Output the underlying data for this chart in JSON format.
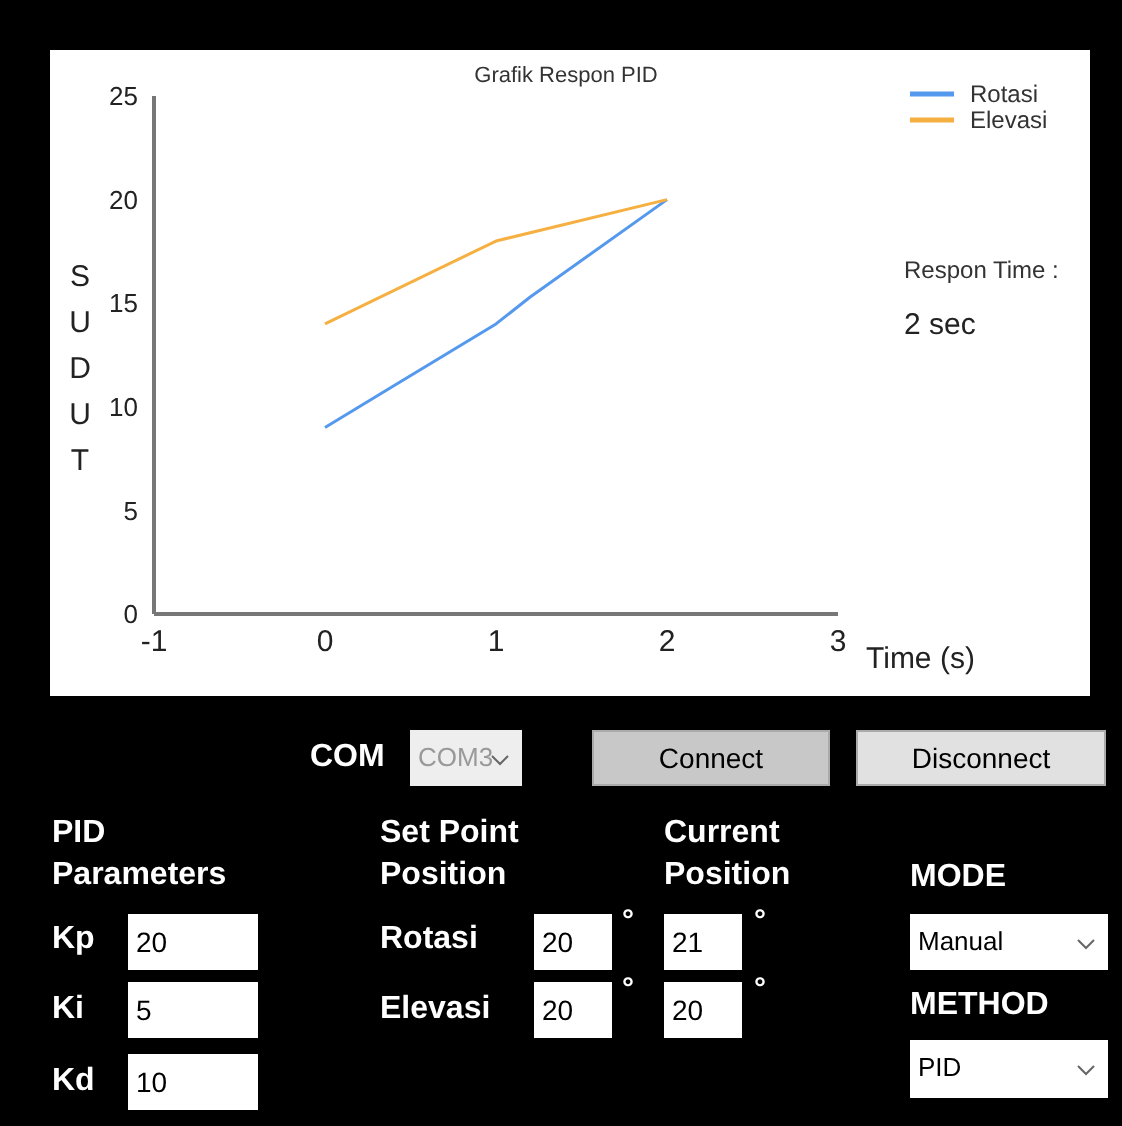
{
  "chart_data": {
    "type": "line",
    "title": "Grafik Respon PID",
    "xlabel": "Time (s)",
    "ylabel": "SUDUT",
    "xlim": [
      -1,
      3
    ],
    "xticks": [
      -1,
      0,
      1,
      2,
      3
    ],
    "ylim": [
      0,
      25
    ],
    "yticks": [
      0,
      5,
      10,
      15,
      20,
      25
    ],
    "grid": false,
    "legend": "top right",
    "marker": "none",
    "line_style": "solid",
    "series": [
      {
        "name": "Rotasi",
        "color": "#5599ee",
        "x": [
          0,
          0.4,
          1,
          1.2,
          2
        ],
        "values": [
          9,
          11,
          14,
          15.3,
          20
        ]
      },
      {
        "name": "Elevasi",
        "color": "#f5b041",
        "x": [
          0,
          1,
          2
        ],
        "values": [
          14,
          18,
          20
        ]
      }
    ],
    "annotations": [
      "Respon Time :",
      "2 sec",
      "COM",
      "COM3",
      "Connect",
      "Disconnect",
      "PID Parameters",
      "Set Point Position",
      "Current Position",
      "MODE",
      "Kp",
      "20",
      "Ki",
      "5",
      "Kd",
      "10",
      "Rotasi",
      "20",
      "°",
      "21",
      "°",
      "Elevasi",
      "20",
      "°",
      "20",
      "°",
      "Manual",
      "METHOD",
      "PID"
    ]
  }
}
